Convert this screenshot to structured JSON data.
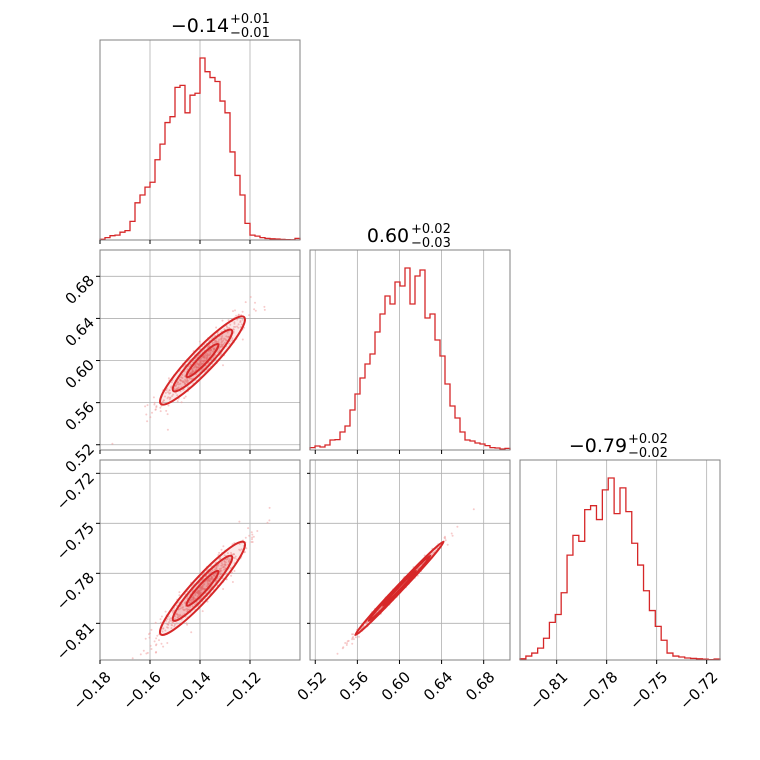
{
  "chart_data": {
    "type": "corner",
    "colors": {
      "main": "#d62728",
      "scatter": "#f0a0a0",
      "frame": "#808080",
      "grid": "#b0b0b0"
    },
    "grid": true,
    "titles": [
      {
        "main": "−0.14",
        "sup": "+0.01",
        "sub": "−0.01"
      },
      {
        "main": "0.60",
        "sup": "+0.02",
        "sub": "−0.03"
      },
      {
        "main": "−0.79",
        "sup": "+0.02",
        "sub": "−0.02"
      }
    ],
    "params": [
      {
        "range": [
          -0.18,
          -0.1
        ],
        "ticks": [
          -0.18,
          -0.16,
          -0.14,
          -0.12
        ],
        "tick_labels": [
          "−0.18",
          "−0.16",
          "−0.14",
          "−0.12"
        ],
        "hist_counts": [
          0.4,
          1.2,
          2.2,
          2.5,
          4,
          4.8,
          9.5,
          19,
          23,
          27,
          29.5,
          41,
          49,
          60,
          63,
          78,
          79,
          65,
          74,
          75,
          93,
          86,
          83,
          81,
          71,
          65,
          45,
          33,
          23,
          8.5,
          2.5,
          2,
          1.2,
          0.8,
          0.6,
          0.5,
          0.3,
          0.2,
          0.1,
          0.8
        ]
      },
      {
        "range": [
          0.515,
          0.705
        ],
        "ticks": [
          0.52,
          0.56,
          0.6,
          0.64,
          0.68
        ],
        "tick_labels": [
          "0.52",
          "0.56",
          "0.60",
          "0.64",
          "0.68"
        ],
        "hist_counts": [
          1.2,
          2,
          1.5,
          2.5,
          5,
          5.2,
          9,
          12,
          20,
          28,
          36,
          43,
          48,
          59,
          68,
          77,
          73,
          84,
          82,
          91,
          73,
          87,
          90,
          66,
          68,
          55,
          47,
          33,
          22,
          16,
          9,
          5,
          4.5,
          3.5,
          3,
          2.2,
          1.2,
          1,
          0.5,
          0.8
        ]
      },
      {
        "range": [
          -0.832,
          -0.712
        ],
        "ticks": [
          -0.81,
          -0.78,
          -0.75,
          -0.72
        ],
        "tick_labels": [
          "−0.81",
          "−0.78",
          "−0.75",
          "−0.72"
        ],
        "hist_counts": [
          0.6,
          2,
          3.5,
          6,
          11,
          19,
          23,
          34,
          53,
          63,
          60,
          76,
          78,
          71,
          86,
          92,
          74,
          87,
          75,
          59,
          48,
          35,
          25,
          17,
          10,
          3.5,
          2,
          1.5,
          1,
          0.8,
          0.6,
          0.4,
          0.2,
          0.5
        ]
      }
    ]
  }
}
